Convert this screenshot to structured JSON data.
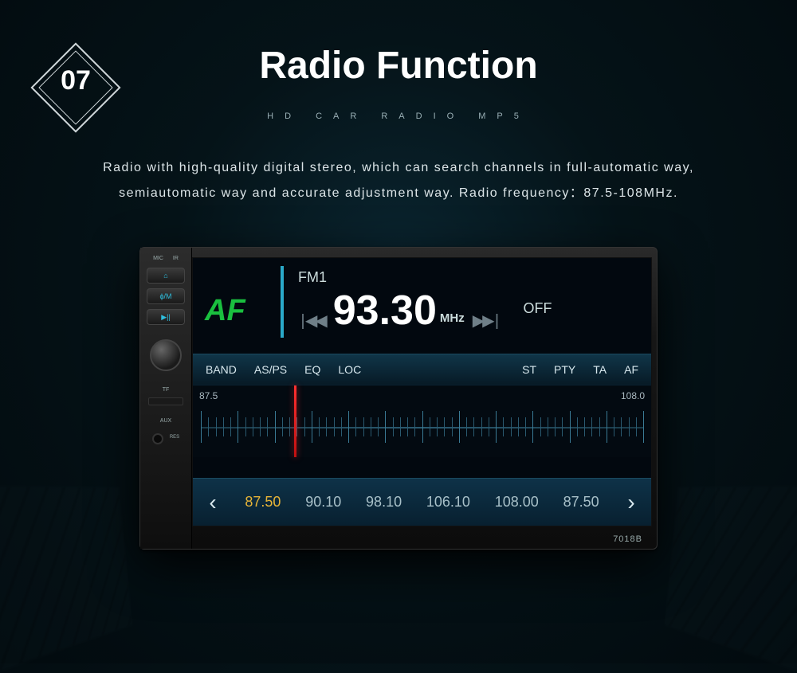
{
  "badge_number": "07",
  "title": "Radio Function",
  "subtitle": "HD CAR RADIO MP5",
  "description": "Radio with high-quality digital stereo, which can search channels in full-automatic way, semiautomatic way and accurate adjustment way. Radio frequency：87.5-108MHz.",
  "side": {
    "top_lbls": [
      "MIC",
      "IR"
    ],
    "btn1": "⌂",
    "btn2": "ϕ/M",
    "btn3": "▶||",
    "tf": "TF",
    "aux": "AUX",
    "res": "RES"
  },
  "screen": {
    "af": "AF",
    "fm_band": "FM1",
    "seek_left": "|◀◀",
    "seek_right": "▶▶|",
    "frequency": "93.30",
    "unit": "MHz",
    "off": "OFF",
    "dial_start": "87.5",
    "dial_end": "108.0",
    "needle_pct": 22
  },
  "buttons": [
    "BAND",
    "AS/PS",
    "EQ",
    "LOC"
  ],
  "buttons_right": [
    "ST",
    "PTY",
    "TA",
    "AF"
  ],
  "presets": {
    "active_index": 0,
    "items": [
      "87.50",
      "90.10",
      "98.10",
      "106.10",
      "108.00",
      "87.50"
    ]
  },
  "model": "7018B",
  "colors": {
    "accent": "#2aa9c9",
    "af_green": "#1abf3f",
    "preset_active": "#e6b438",
    "needle": "#ff3030"
  }
}
